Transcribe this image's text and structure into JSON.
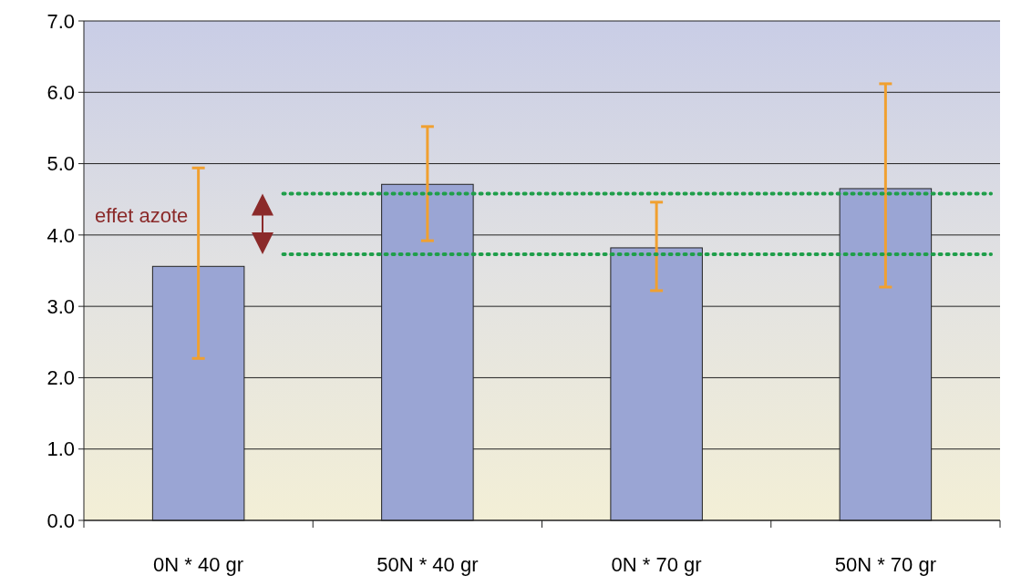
{
  "chart_data": {
    "type": "bar",
    "categories": [
      "0N * 40 gr",
      "50N * 40 gr",
      "0N * 70 gr",
      "50N * 70 gr"
    ],
    "values": [
      3.56,
      4.71,
      3.82,
      4.65
    ],
    "color": "#9aa5d4",
    "errors": [
      [
        2.27,
        4.94
      ],
      [
        3.92,
        5.52
      ],
      [
        3.22,
        4.46
      ],
      [
        3.27,
        6.12
      ]
    ],
    "ylim": [
      0,
      7
    ],
    "yticks": [
      {
        "value": 0,
        "label": "0.0"
      },
      {
        "value": 1,
        "label": "1.0"
      },
      {
        "value": 2,
        "label": "2.0"
      },
      {
        "value": 3,
        "label": "3.0"
      },
      {
        "value": 4,
        "label": "4.0"
      },
      {
        "value": 5,
        "label": "5.0"
      },
      {
        "value": 6,
        "label": "6.0"
      },
      {
        "value": 7,
        "label": "7.0"
      }
    ],
    "grid": "y",
    "ref_lines": [
      {
        "axis": "y",
        "value": 4.58,
        "color": "#1f9e4a",
        "line_style": "dotted"
      },
      {
        "axis": "y",
        "value": 3.73,
        "color": "#1f9e4a",
        "line_style": "dotted"
      }
    ],
    "annotations": [
      "effet azote"
    ]
  }
}
